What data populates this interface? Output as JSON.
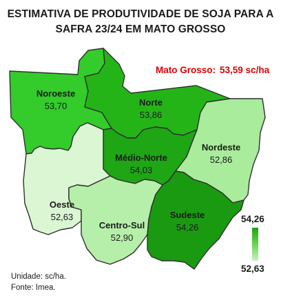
{
  "title": {
    "line1": "ESTIMATIVA DE PRODUTIVIDADE DE SOJA PARA A",
    "line2": "SAFRA 23/24 EM MATO GROSSO"
  },
  "state": {
    "label": "Mato Grosso:",
    "value": "53,59 sc/ha"
  },
  "regions": {
    "noroeste": {
      "name": "Noroeste",
      "value": "53,70",
      "color": "#33cc2a"
    },
    "norte": {
      "name": "Norte",
      "value": "53,86",
      "color": "#25b418"
    },
    "medio_norte": {
      "name": "Médio-Norte",
      "value": "54,03",
      "color": "#1ea614"
    },
    "nordeste": {
      "name": "Nordeste",
      "value": "52,86",
      "color": "#a9ec9b"
    },
    "oeste": {
      "name": "Oeste",
      "value": "52,63",
      "color": "#daf6d3"
    },
    "centro_sul": {
      "name": "Centro-Sul",
      "value": "52,90",
      "color": "#b6efaa"
    },
    "sudeste": {
      "name": "Sudeste",
      "value": "54,26",
      "color": "#1a9a10"
    }
  },
  "legend": {
    "max": "54,26",
    "min": "52,63"
  },
  "footer": {
    "unit": "Unidade: sc/ha.",
    "source": "Fonte: Imea."
  }
}
